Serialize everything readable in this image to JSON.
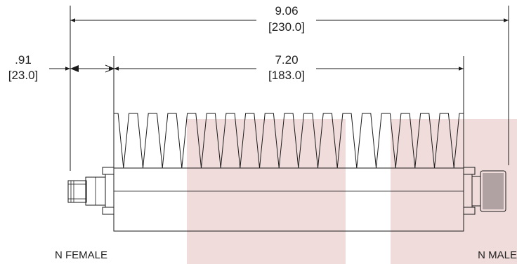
{
  "dimensions": {
    "overall": {
      "inch": "9.06",
      "mm": "[230.0]"
    },
    "body": {
      "inch": "7.20",
      "mm": "[183.0]"
    },
    "connector": {
      "inch": ".91",
      "mm": "[23.0]"
    }
  },
  "connectors": {
    "left": "N FEMALE",
    "right": "N MALE"
  },
  "colors": {
    "line": "#1a1a1a",
    "watermark": "#f1dcdc"
  }
}
